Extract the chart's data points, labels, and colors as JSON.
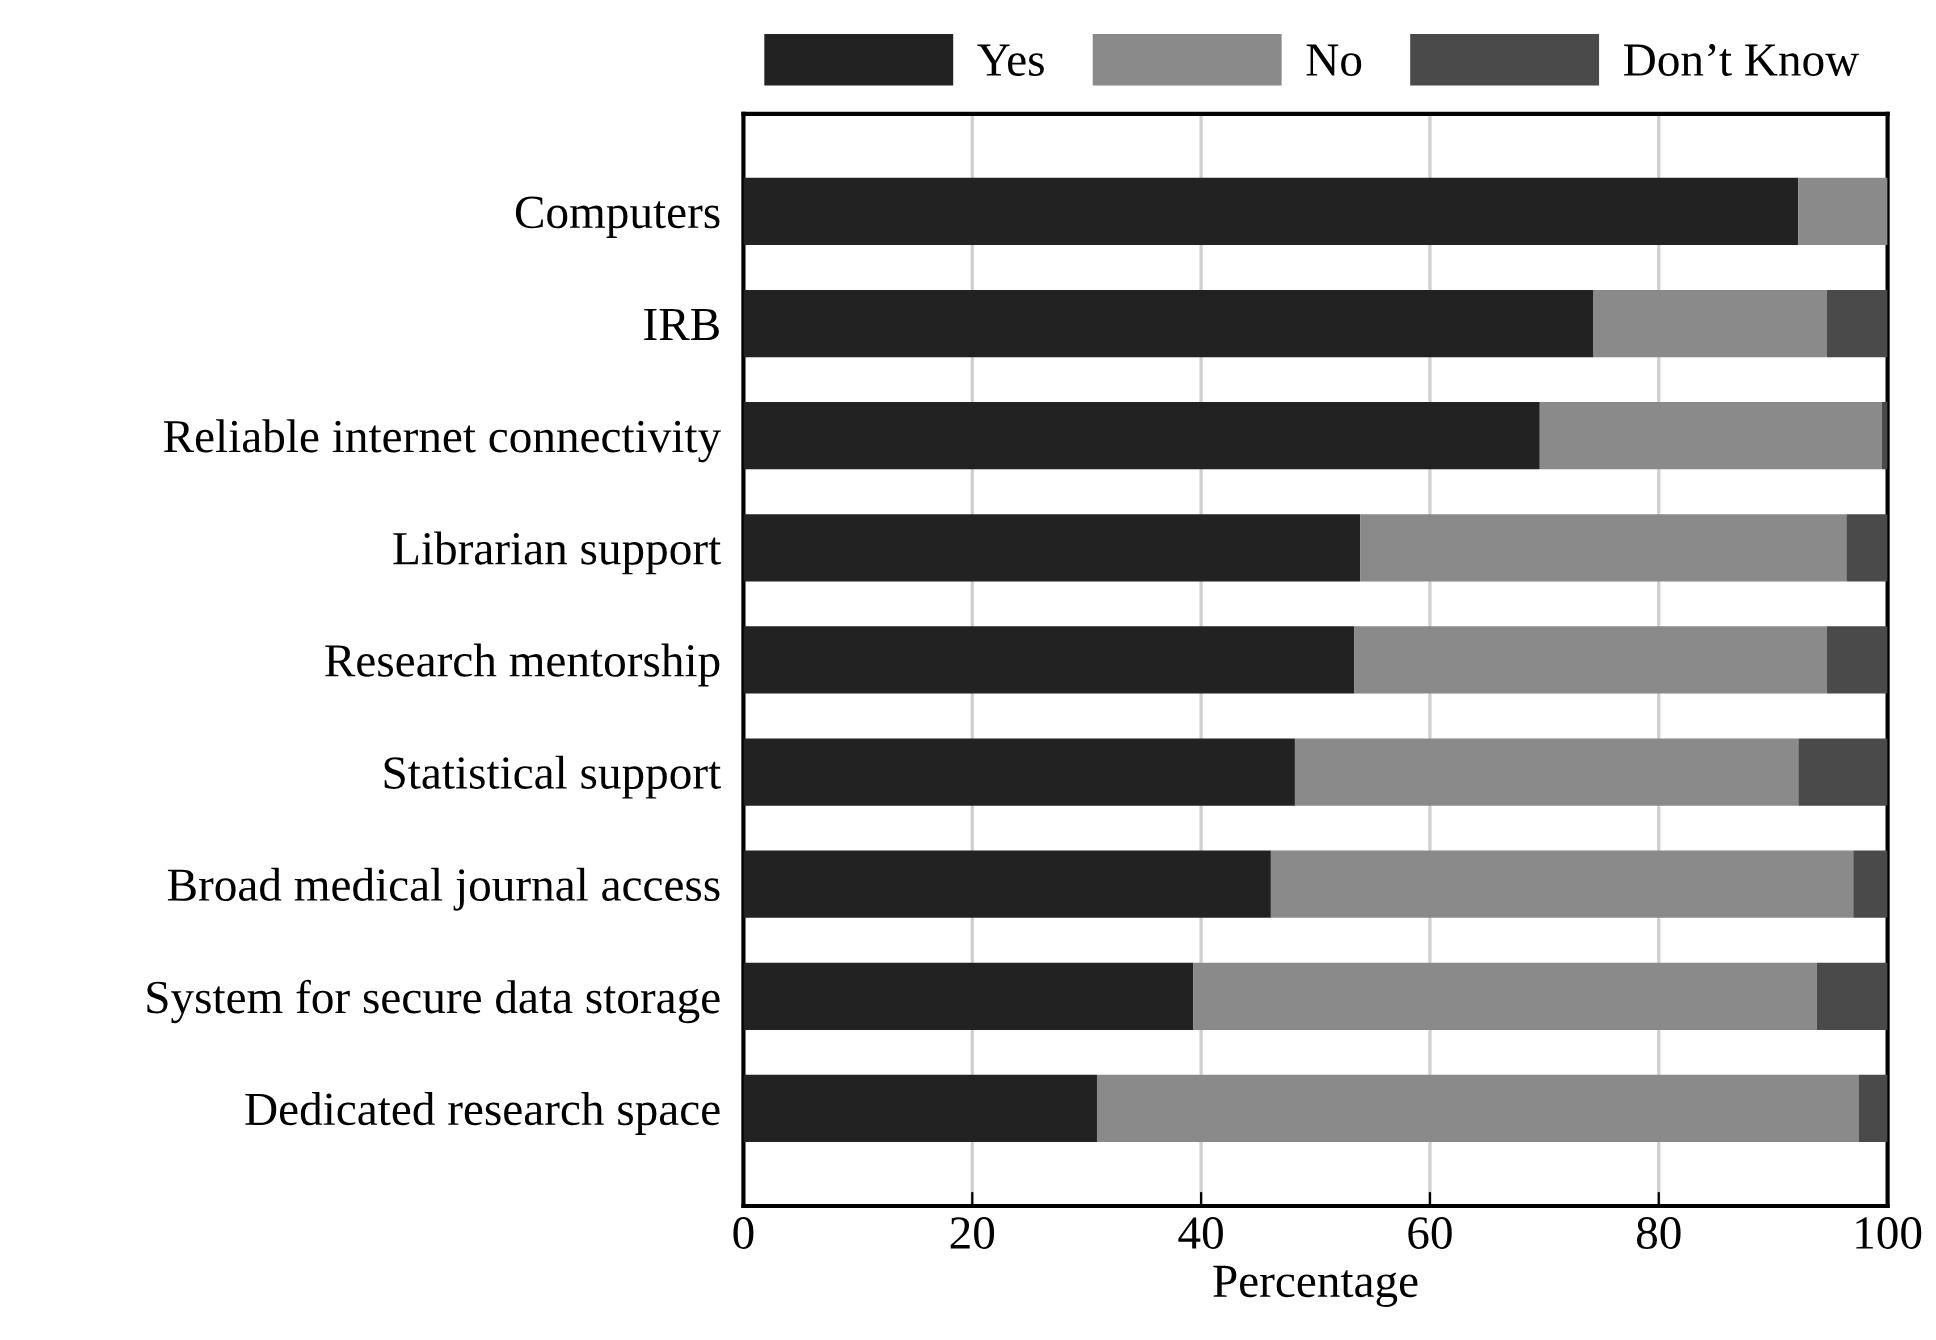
{
  "chart_data": {
    "type": "bar",
    "orientation": "horizontal",
    "stacked": true,
    "xlabel": "Percentage",
    "categories": [
      "Computers",
      "IRB",
      "Reliable internet connectivity",
      "Librarian support",
      "Research mentorship",
      "Statistical support",
      "Broad medical journal access",
      "System for secure data storage",
      "Dedicated research space"
    ],
    "series": [
      {
        "name": "Yes",
        "color": "#222222",
        "values": [
          92.2,
          74.3,
          69.6,
          53.9,
          53.4,
          48.2,
          46.1,
          39.3,
          30.9
        ]
      },
      {
        "name": "No",
        "color": "#8a8a8a",
        "values": [
          7.8,
          20.4,
          29.9,
          42.5,
          41.3,
          44.0,
          50.9,
          54.5,
          66.6
        ]
      },
      {
        "name": "Don’t Know",
        "color": "#4a4a4a",
        "values": [
          0,
          5.3,
          0.5,
          3.6,
          5.3,
          7.8,
          3.0,
          6.2,
          2.5
        ]
      }
    ],
    "xlim": [
      0,
      100
    ],
    "xticks": [
      0,
      20,
      40,
      60,
      80,
      100
    ],
    "grid": "x",
    "legend": "top right"
  }
}
